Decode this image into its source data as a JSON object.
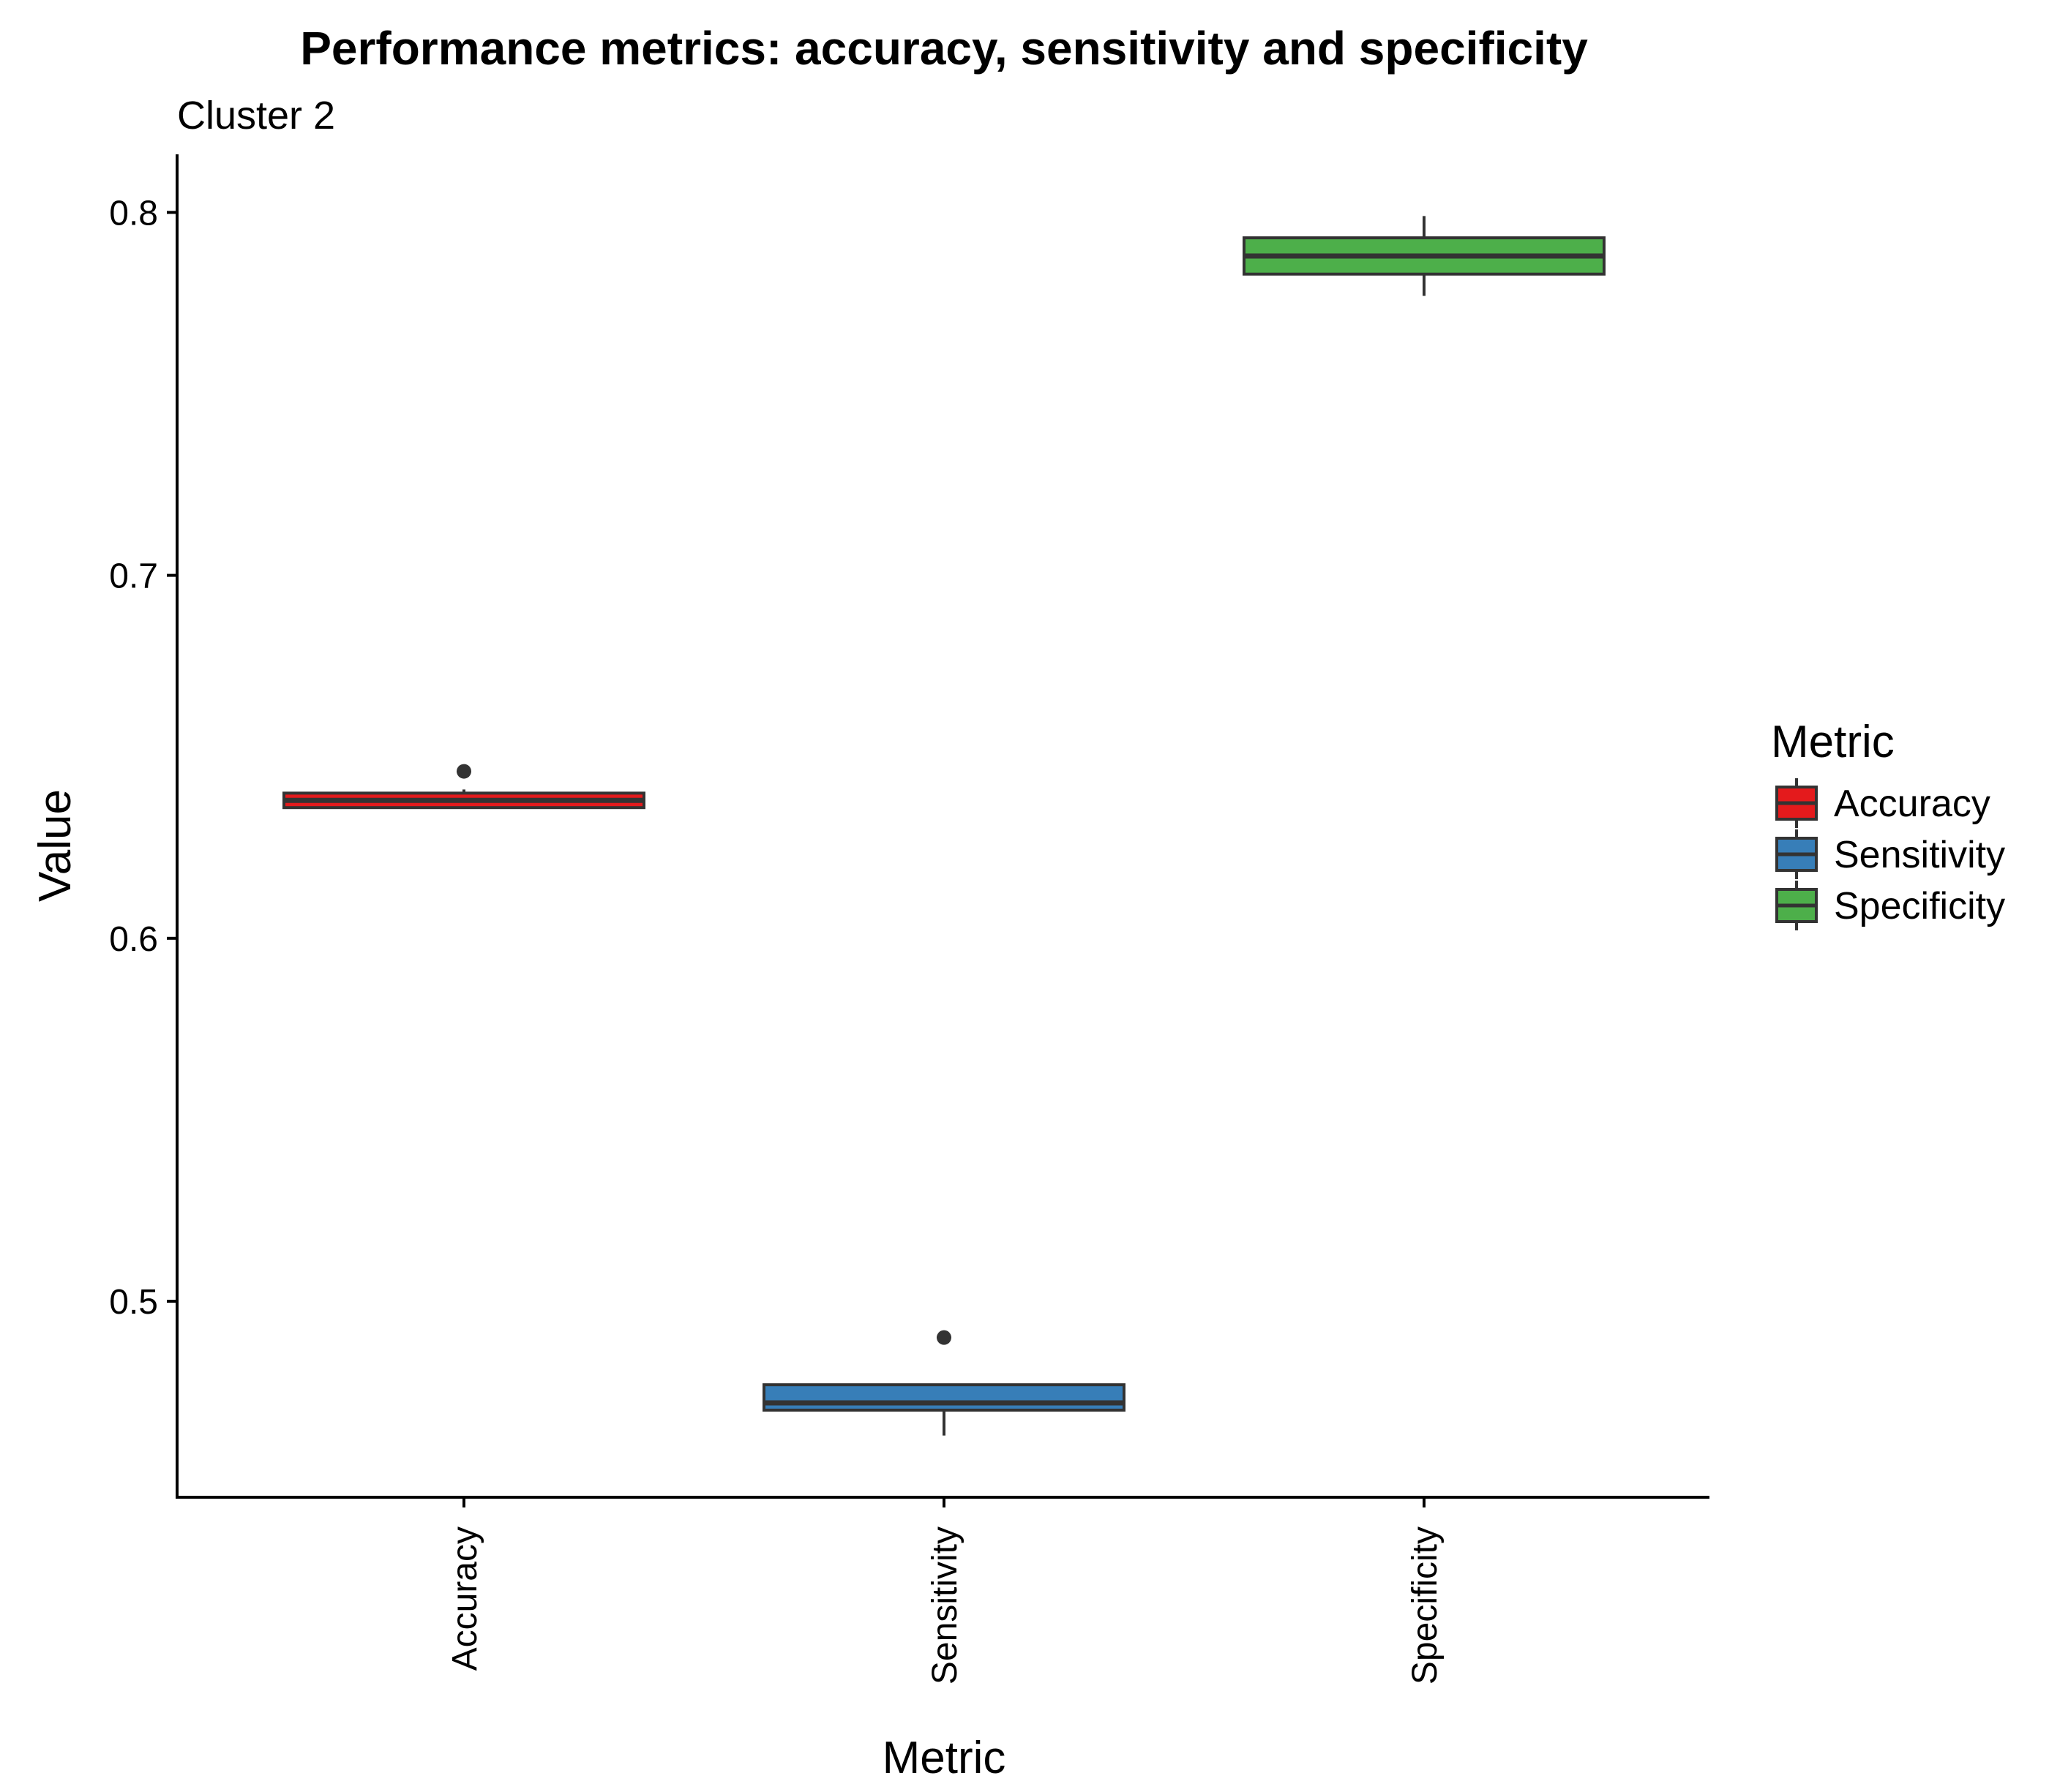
{
  "chart_data": {
    "type": "box",
    "title": "Performance metrics: accuracy, sensitivity and specificity",
    "subtitle": "Cluster 2",
    "xlabel": "Metric",
    "ylabel": "Value",
    "ylim": [
      0.446,
      0.816
    ],
    "yticks": [
      0.5,
      0.6,
      0.7,
      0.8
    ],
    "ytick_labels": [
      "0.5",
      "0.6",
      "0.7",
      "0.8"
    ],
    "categories": [
      "Accuracy",
      "Sensitivity",
      "Specificity"
    ],
    "boxes": [
      {
        "name": "Accuracy",
        "color": "#E41A1C",
        "whisker_low": 0.636,
        "q1": 0.636,
        "median": 0.638,
        "q3": 0.64,
        "whisker_high": 0.641,
        "outliers": [
          0.646
        ]
      },
      {
        "name": "Sensitivity",
        "color": "#377EB8",
        "whisker_low": 0.463,
        "q1": 0.47,
        "median": 0.472,
        "q3": 0.477,
        "whisker_high": 0.477,
        "outliers": [
          0.49
        ]
      },
      {
        "name": "Specificity",
        "color": "#4DAF4A",
        "whisker_low": 0.777,
        "q1": 0.783,
        "median": 0.788,
        "q3": 0.793,
        "whisker_high": 0.799,
        "outliers": []
      }
    ],
    "legend": {
      "title": "Metric",
      "position": "right",
      "items": [
        "Accuracy",
        "Sensitivity",
        "Specificity"
      ]
    },
    "grid": false
  }
}
